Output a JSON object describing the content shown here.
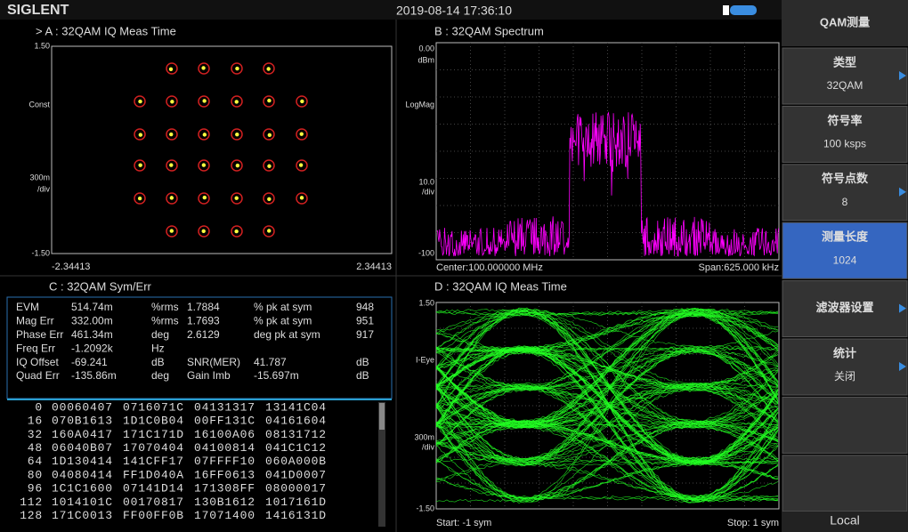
{
  "status_bar": {
    "brand": "SIGLENT",
    "datetime": "2019-08-14 17:36:10"
  },
  "trace_a": {
    "title": "> A : 32QAM IQ Meas Time",
    "labels": {
      "top": "1.50",
      "mid": "Const",
      "scale": "300m",
      "per_div": "/div",
      "bottom": "-1.50",
      "left": "-2.34413",
      "right": "2.34413"
    }
  },
  "trace_b": {
    "title": "B : 32QAM Spectrum",
    "labels": {
      "top": "0.00",
      "unit": "dBm",
      "mode": "LogMag",
      "scale": "10.0",
      "per_div": "/div",
      "bottom": "-100",
      "center": "Center:100.000000 MHz",
      "span": "Span:625.000 kHz"
    }
  },
  "trace_c": {
    "title": "C : 32QAM Sym/Err",
    "metrics": [
      [
        "EVM",
        "514.74m",
        "%rms",
        "1.7884",
        "% pk at sym",
        "948"
      ],
      [
        "Mag Err",
        "332.00m",
        "%rms",
        "1.7693",
        "% pk at sym",
        "951"
      ],
      [
        "Phase Err",
        "461.34m",
        "deg",
        "2.6129",
        "deg pk at sym",
        "917"
      ],
      [
        "Freq Err",
        "-1.2092k",
        "Hz"
      ],
      [
        "IQ Offset",
        "-69.241",
        "dB",
        "SNR(MER)",
        "41.787",
        "dB"
      ],
      [
        "Quad Err",
        "-135.86m",
        "deg",
        "Gain Imb",
        "-15.697m",
        "dB"
      ]
    ],
    "symbols": [
      [
        "0",
        "00060407",
        "0716071C",
        "04131317",
        "13141C04"
      ],
      [
        "16",
        "070B1613",
        "1D1C0B04",
        "00FF131C",
        "04161604"
      ],
      [
        "32",
        "160A0417",
        "171C171D",
        "16100A06",
        "08131712"
      ],
      [
        "48",
        "06040B07",
        "17070404",
        "04100814",
        "041C1C12"
      ],
      [
        "64",
        "1D130414",
        "141CFF17",
        "07FFFF10",
        "060A000B"
      ],
      [
        "80",
        "04080414",
        "FF1D040A",
        "16FF0613",
        "041D0007"
      ],
      [
        "96",
        "1C1C1600",
        "07141D14",
        "171308FF",
        "08000017"
      ],
      [
        "112",
        "1014101C",
        "00170817",
        "130B1612",
        "1017161D"
      ],
      [
        "128",
        "171C0013",
        "FF00FF0B",
        "17071400",
        "1416131D"
      ]
    ]
  },
  "trace_d": {
    "title": "D : 32QAM IQ Meas Time",
    "labels": {
      "top": "1.50",
      "mid": "I-Eye",
      "scale": "300m",
      "per_div": "/div",
      "bottom": "-1.50",
      "start": "Start: -1 sym",
      "stop": "Stop: 1 sym"
    }
  },
  "menu": {
    "title": "QAM测量",
    "items": [
      {
        "label": "类型",
        "value": "32QAM"
      },
      {
        "label": "符号率",
        "value": "100 ksps"
      },
      {
        "label": "符号点数",
        "value": "8"
      },
      {
        "label": "测量长度",
        "value": "1024"
      },
      {
        "label": "滤波器设置"
      },
      {
        "label": "统计",
        "value": "关闭"
      }
    ],
    "footer": "Local"
  }
}
